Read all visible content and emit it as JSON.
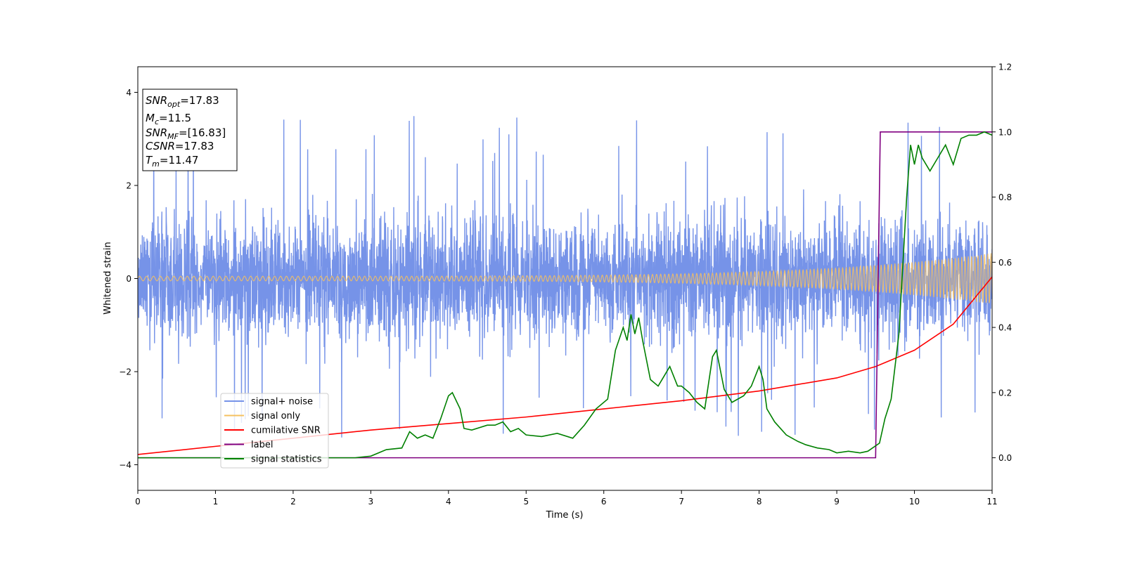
{
  "chart_data": {
    "type": "line",
    "xlabel": "Time (s)",
    "ylabel": "Whitened strain",
    "xlim": [
      0,
      11
    ],
    "ylim": [
      -4.55,
      4.55
    ],
    "y2lim": [
      -0.1,
      1.2
    ],
    "xticks": [
      0,
      1,
      2,
      3,
      4,
      5,
      6,
      7,
      8,
      9,
      10,
      11
    ],
    "yticks": [
      -4,
      -2,
      0,
      2,
      4
    ],
    "y2ticks": [
      0.0,
      0.2,
      0.4,
      0.6,
      0.8,
      1.0,
      1.2
    ],
    "xtick_labels": [
      "0",
      "1",
      "2",
      "3",
      "4",
      "5",
      "6",
      "7",
      "8",
      "9",
      "10",
      "11"
    ],
    "ytick_labels": [
      "−4",
      "−2",
      "0",
      "2",
      "4"
    ],
    "y2tick_labels": [
      "0.0",
      "0.2",
      "0.4",
      "0.6",
      "0.8",
      "1.0",
      "1.2"
    ],
    "grid": false,
    "legend_position": "lower-left",
    "series": [
      {
        "name": "signal+ noise",
        "color": "#7693e8",
        "axis": "left",
        "kind": "noise",
        "envelope_typical": 1.6,
        "spike_min": -4.15,
        "spike_max": 3.85
      },
      {
        "name": "signal only",
        "color": "#f5c060",
        "axis": "left",
        "kind": "chirp",
        "amplitude_start": 0.05,
        "amplitude_end": 0.55
      },
      {
        "name": "cumilative SNR",
        "color": "#ff0000",
        "axis": "right",
        "x": [
          0,
          1,
          2,
          3,
          4,
          5,
          6,
          7,
          8,
          9,
          9.5,
          10,
          10.5,
          11
        ],
        "y": [
          0.01,
          0.035,
          0.06,
          0.085,
          0.105,
          0.125,
          0.15,
          0.175,
          0.205,
          0.245,
          0.28,
          0.33,
          0.41,
          0.555
        ]
      },
      {
        "name": "label",
        "color": "#800080",
        "axis": "right",
        "x": [
          0,
          9.5,
          9.56,
          11
        ],
        "y": [
          0,
          0,
          1,
          1
        ]
      },
      {
        "name": "signal statistics",
        "color": "#008000",
        "axis": "right",
        "x": [
          0,
          0.5,
          1,
          1.5,
          2,
          2.5,
          2.8,
          3.0,
          3.2,
          3.4,
          3.5,
          3.6,
          3.7,
          3.8,
          3.9,
          4.0,
          4.05,
          4.15,
          4.2,
          4.3,
          4.5,
          4.6,
          4.7,
          4.8,
          4.9,
          5.0,
          5.2,
          5.4,
          5.6,
          5.75,
          5.9,
          6.05,
          6.15,
          6.25,
          6.3,
          6.35,
          6.4,
          6.45,
          6.5,
          6.6,
          6.7,
          6.75,
          6.85,
          6.95,
          7.0,
          7.1,
          7.2,
          7.3,
          7.4,
          7.45,
          7.55,
          7.65,
          7.8,
          7.9,
          8.0,
          8.05,
          8.1,
          8.2,
          8.35,
          8.5,
          8.6,
          8.75,
          8.9,
          9.0,
          9.15,
          9.3,
          9.4,
          9.55,
          9.62,
          9.7,
          9.8,
          9.9,
          9.95,
          10.0,
          10.05,
          10.1,
          10.2,
          10.3,
          10.4,
          10.5,
          10.6,
          10.7,
          10.8,
          10.9,
          11.0
        ],
        "y": [
          0.0,
          0.0,
          0.0,
          0.0,
          0.0,
          0.0,
          0.0,
          0.005,
          0.025,
          0.03,
          0.08,
          0.06,
          0.07,
          0.06,
          0.12,
          0.19,
          0.2,
          0.15,
          0.09,
          0.085,
          0.1,
          0.1,
          0.11,
          0.08,
          0.09,
          0.07,
          0.065,
          0.075,
          0.06,
          0.1,
          0.15,
          0.18,
          0.33,
          0.4,
          0.36,
          0.44,
          0.38,
          0.43,
          0.36,
          0.24,
          0.22,
          0.24,
          0.28,
          0.22,
          0.22,
          0.2,
          0.17,
          0.15,
          0.31,
          0.33,
          0.21,
          0.17,
          0.19,
          0.22,
          0.28,
          0.24,
          0.15,
          0.11,
          0.07,
          0.05,
          0.04,
          0.03,
          0.025,
          0.015,
          0.02,
          0.015,
          0.02,
          0.045,
          0.12,
          0.18,
          0.38,
          0.8,
          0.96,
          0.9,
          0.96,
          0.92,
          0.88,
          0.92,
          0.96,
          0.9,
          0.98,
          0.99,
          0.99,
          1.0,
          0.99
        ]
      }
    ],
    "annotation_lines": [
      {
        "base": "SNR",
        "sub": "opt",
        "value": "=17.83"
      },
      {
        "base": "M",
        "sub": "c",
        "value": "=11.5"
      },
      {
        "base": "SNR",
        "sub": "MF",
        "value": "=[16.83]"
      },
      {
        "base": "CSNR",
        "sub": "",
        "value": "=17.83"
      },
      {
        "base": "T",
        "sub": "m",
        "value": "=11.47"
      }
    ]
  }
}
